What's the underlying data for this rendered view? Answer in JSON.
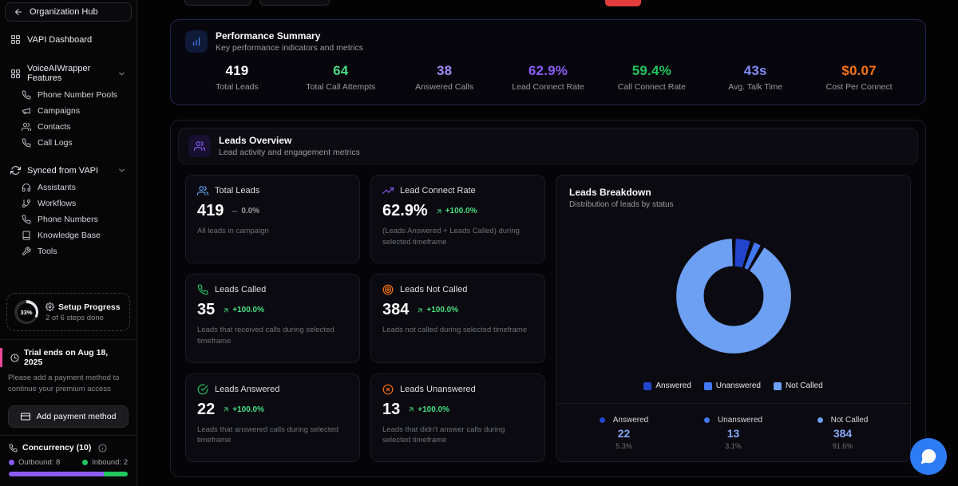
{
  "colors": {
    "accent_blue": "#3b82f6",
    "accent_purple": "#8b5cf6",
    "accent_green": "#22c55e",
    "accent_orange": "#f97316",
    "accent_pink": "#ec4899",
    "fab_blue": "#2e7bf6",
    "danger_red": "#e23d3d"
  },
  "sidebar": {
    "back_label": "Organization Hub",
    "dashboard_label": "VAPI Dashboard",
    "sections": [
      {
        "label": "VoiceAIWrapper Features",
        "icon": "grid",
        "items": [
          {
            "label": "Phone Number Pools",
            "icon": "phone"
          },
          {
            "label": "Campaigns",
            "icon": "megaphone"
          },
          {
            "label": "Contacts",
            "icon": "users"
          },
          {
            "label": "Call Logs",
            "icon": "phone"
          }
        ]
      },
      {
        "label": "Synced from VAPI",
        "icon": "refresh",
        "items": [
          {
            "label": "Assistants",
            "icon": "headset"
          },
          {
            "label": "Workflows",
            "icon": "branch"
          },
          {
            "label": "Phone Numbers",
            "icon": "phone"
          },
          {
            "label": "Knowledge Base",
            "icon": "book"
          },
          {
            "label": "Tools",
            "icon": "wrench"
          }
        ]
      }
    ],
    "setup": {
      "percent_label": "33%",
      "percent_value": 33,
      "title": "Setup Progress",
      "subtitle": "2 of 6 steps done"
    },
    "trial": {
      "title": "Trial ends on Aug 18, 2025",
      "description": "Please add a payment method to continue your premium access"
    },
    "payment_button_label": "Add payment method",
    "concurrency": {
      "title": "Concurrency (10)",
      "outbound_label": "Outbound: 8",
      "inbound_label": "Inbound: 2",
      "outbound": 8,
      "inbound": 2,
      "total": 10,
      "outbound_color": "#8b5cf6",
      "inbound_color": "#22c55e"
    }
  },
  "performance": {
    "title": "Performance Summary",
    "subtitle": "Key performance indicators and metrics",
    "icon": "bar-chart",
    "metrics": [
      {
        "value": "419",
        "label": "Total Leads",
        "color": "#ffffff"
      },
      {
        "value": "64",
        "label": "Total Call Attempts",
        "color": "#4ade80"
      },
      {
        "value": "38",
        "label": "Answered Calls",
        "color": "#a78bfa"
      },
      {
        "value": "62.9%",
        "label": "Lead Connect Rate",
        "color": "#8b5cf6"
      },
      {
        "value": "59.4%",
        "label": "Call Connect Rate",
        "color": "#22c55e"
      },
      {
        "value": "43s",
        "label": "Avg. Talk Time",
        "color": "#818cf8"
      },
      {
        "value": "$0.07",
        "label": "Cost Per Connect",
        "color": "#f97316"
      }
    ]
  },
  "leads": {
    "title": "Leads Overview",
    "subtitle": "Lead activity and engagement metrics",
    "icon": "users",
    "cards": [
      {
        "icon": "users",
        "icon_color": "#60a5fa",
        "title": "Total Leads",
        "value": "419",
        "change": "0.0%",
        "trend": "flat",
        "trend_icon": "minus",
        "description": "All leads in campaign"
      },
      {
        "icon": "trending-up",
        "icon_color": "#8b5cf6",
        "title": "Lead Connect Rate",
        "value": "62.9%",
        "change": "+100.0%",
        "trend": "up",
        "trend_icon": "arrow-up-right",
        "description": "(Leads Answered + Leads Called) during selected timeframe"
      },
      {
        "icon": "phone",
        "icon_color": "#22c55e",
        "title": "Leads Called",
        "value": "35",
        "change": "+100.0%",
        "trend": "up",
        "trend_icon": "arrow-up-right",
        "description": "Leads that received calls during selected timeframe"
      },
      {
        "icon": "target",
        "icon_color": "#f97316",
        "title": "Leads Not Called",
        "value": "384",
        "change": "+100.0%",
        "trend": "up",
        "trend_icon": "arrow-up-right",
        "description": "Leads not called during selected timeframe"
      },
      {
        "icon": "check-circle",
        "icon_color": "#22c55e",
        "title": "Leads Answered",
        "value": "22",
        "change": "+100.0%",
        "trend": "up",
        "trend_icon": "arrow-up-right",
        "description": "Leads that answered calls during selected timeframe"
      },
      {
        "icon": "x-circle",
        "icon_color": "#f97316",
        "title": "Leads Unanswered",
        "value": "13",
        "change": "+100.0%",
        "trend": "up",
        "trend_icon": "arrow-up-right",
        "description": "Leads that didn't answer calls during selected timeframe"
      }
    ]
  },
  "chart_data": {
    "type": "pie",
    "variant": "donut",
    "title": "Leads Breakdown",
    "subtitle": "Distribution of leads by status",
    "labels": [
      "Answered",
      "Unanswered",
      "Not Called"
    ],
    "values": [
      22,
      13,
      384
    ],
    "percents": [
      "5.3%",
      "3.1%",
      "91.6%"
    ],
    "colors": [
      "#2244cc",
      "#4478f0",
      "#6d9ff2"
    ],
    "value_text_color": "#88a7f5",
    "legend_position": "bottom"
  }
}
